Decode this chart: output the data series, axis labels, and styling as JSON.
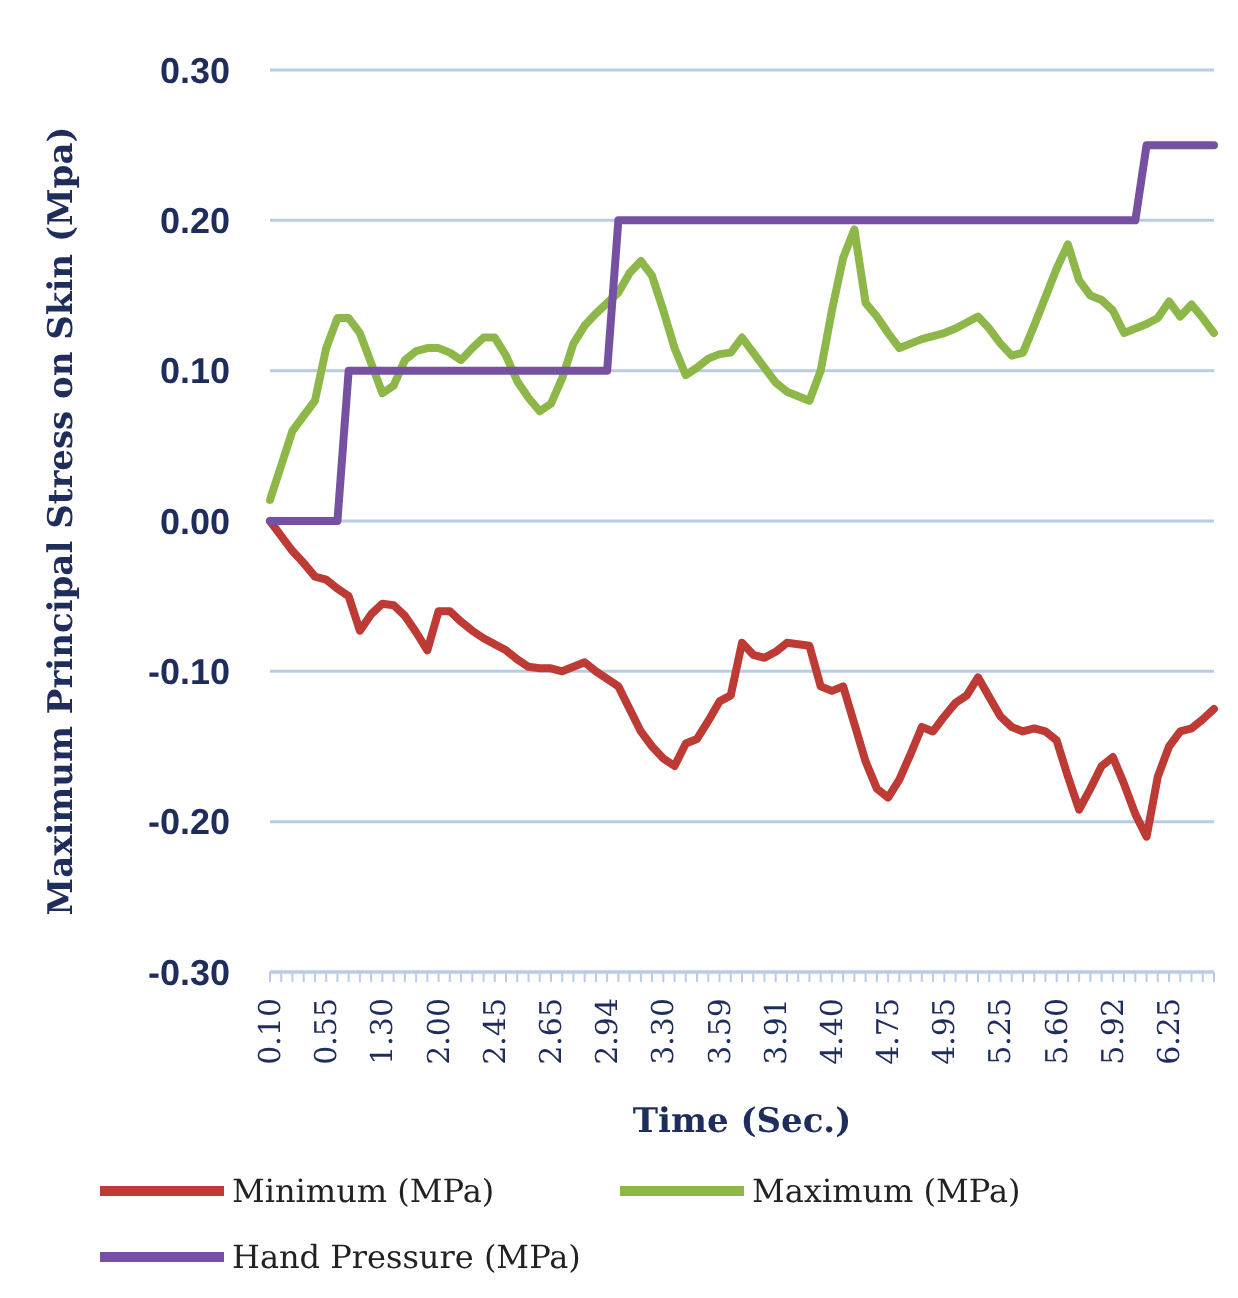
{
  "chart_data": {
    "type": "line",
    "xlabel": "Time (Sec.)",
    "ylabel": "Maximum Principal Stress on Skin (Mpa)",
    "categories": [
      "0.10",
      null,
      null,
      null,
      null,
      "0.55",
      null,
      null,
      null,
      null,
      "1.30",
      null,
      null,
      null,
      null,
      "2.00",
      null,
      null,
      null,
      null,
      "2.45",
      null,
      null,
      null,
      null,
      "2.65",
      null,
      null,
      null,
      null,
      "2.94",
      null,
      null,
      null,
      null,
      "3.30",
      null,
      null,
      null,
      null,
      "3.59",
      null,
      null,
      null,
      null,
      "3.91",
      null,
      null,
      null,
      null,
      "4.40",
      null,
      null,
      null,
      null,
      "4.75",
      null,
      null,
      null,
      null,
      "4.95",
      null,
      null,
      null,
      null,
      "5.25",
      null,
      null,
      null,
      null,
      "5.60",
      null,
      null,
      null,
      null,
      "5.92",
      null,
      null,
      null,
      null,
      "6.25",
      null,
      null,
      null,
      null
    ],
    "series": [
      {
        "name": "Minimum (MPa)",
        "color": "#be3a34",
        "values": [
          0,
          -0.01,
          -0.02,
          -0.028,
          -0.037,
          -0.039,
          -0.045,
          -0.05,
          -0.073,
          -0.062,
          -0.055,
          -0.056,
          -0.063,
          -0.074,
          -0.086,
          -0.06,
          -0.06,
          -0.067,
          -0.073,
          -0.078,
          -0.082,
          -0.086,
          -0.092,
          -0.097,
          -0.098,
          -0.098,
          -0.1,
          -0.097,
          -0.094,
          -0.1,
          -0.105,
          -0.11,
          -0.125,
          -0.14,
          -0.15,
          -0.158,
          -0.163,
          -0.148,
          -0.145,
          -0.133,
          -0.12,
          -0.116,
          -0.081,
          -0.089,
          -0.091,
          -0.087,
          -0.081,
          -0.082,
          -0.083,
          -0.11,
          -0.113,
          -0.11,
          -0.135,
          -0.16,
          -0.178,
          -0.184,
          -0.172,
          -0.155,
          -0.137,
          -0.14,
          -0.13,
          -0.121,
          -0.116,
          -0.104,
          -0.117,
          -0.13,
          -0.137,
          -0.14,
          -0.138,
          -0.14,
          -0.146,
          -0.17,
          -0.192,
          -0.178,
          -0.163,
          -0.157,
          -0.175,
          -0.195,
          -0.21,
          -0.17,
          -0.15,
          -0.14,
          -0.138,
          -0.132,
          -0.125
        ]
      },
      {
        "name": "Maximum (MPa)",
        "color": "#8db849",
        "values": [
          0.014,
          0.037,
          0.06,
          0.07,
          0.08,
          0.115,
          0.135,
          0.135,
          0.125,
          0.105,
          0.085,
          0.09,
          0.107,
          0.113,
          0.115,
          0.115,
          0.112,
          0.107,
          0.115,
          0.122,
          0.122,
          0.11,
          0.093,
          0.082,
          0.073,
          0.078,
          0.095,
          0.118,
          0.13,
          0.138,
          0.145,
          0.152,
          0.165,
          0.173,
          0.163,
          0.14,
          0.115,
          0.097,
          0.102,
          0.108,
          0.111,
          0.112,
          0.122,
          0.112,
          0.102,
          0.092,
          0.086,
          0.083,
          0.08,
          0.1,
          0.14,
          0.175,
          0.194,
          0.145,
          0.136,
          0.125,
          0.115,
          0.118,
          0.121,
          0.123,
          0.125,
          0.128,
          0.132,
          0.136,
          0.128,
          0.118,
          0.11,
          0.112,
          0.13,
          0.149,
          0.168,
          0.184,
          0.16,
          0.15,
          0.147,
          0.14,
          0.125,
          0.128,
          0.131,
          0.135,
          0.146,
          0.136,
          0.144,
          0.135,
          0.125
        ]
      },
      {
        "name": "Hand Pressure (MPa)",
        "color": "#7651a2",
        "values": [
          0,
          0,
          0,
          0,
          0,
          0,
          0,
          0.1,
          0.1,
          0.1,
          0.1,
          0.1,
          0.1,
          0.1,
          0.1,
          0.1,
          0.1,
          0.1,
          0.1,
          0.1,
          0.1,
          0.1,
          0.1,
          0.1,
          0.1,
          0.1,
          0.1,
          0.1,
          0.1,
          0.1,
          0.1,
          0.2,
          0.2,
          0.2,
          0.2,
          0.2,
          0.2,
          0.2,
          0.2,
          0.2,
          0.2,
          0.2,
          0.2,
          0.2,
          0.2,
          0.2,
          0.2,
          0.2,
          0.2,
          0.2,
          0.2,
          0.2,
          0.2,
          0.2,
          0.2,
          0.2,
          0.2,
          0.2,
          0.2,
          0.2,
          0.2,
          0.2,
          0.2,
          0.2,
          0.2,
          0.2,
          0.2,
          0.2,
          0.2,
          0.2,
          0.2,
          0.2,
          0.2,
          0.2,
          0.2,
          0.2,
          0.2,
          0.2,
          0.25,
          0.25,
          0.25,
          0.25,
          0.25,
          0.25,
          0.25
        ]
      }
    ],
    "ylim": [
      -0.3,
      0.3
    ],
    "yticks": [
      {
        "value": -0.3,
        "label": "-0.30"
      },
      {
        "value": -0.2,
        "label": "-0.20"
      },
      {
        "value": -0.1,
        "label": "-0.10"
      },
      {
        "value": 0,
        "label": "0.00"
      },
      {
        "value": 0.1,
        "label": "0.10"
      },
      {
        "value": 0.2,
        "label": "0.20"
      },
      {
        "value": 0.3,
        "label": "0.30"
      }
    ],
    "grid": "y",
    "legend": "bottom",
    "marker": "none",
    "line_style": "solid"
  }
}
